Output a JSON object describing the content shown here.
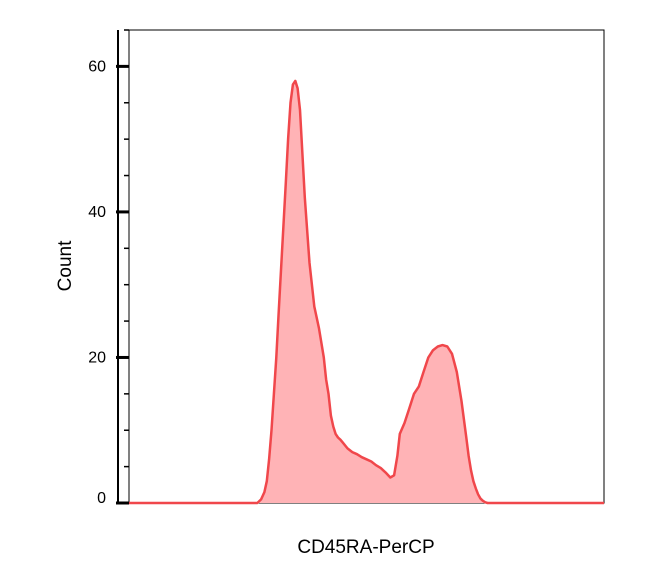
{
  "chart_data": {
    "type": "area",
    "title": "",
    "xlabel": "CD45RA-PerCP",
    "ylabel": "Count",
    "ylim": [
      0,
      65
    ],
    "xlim": [
      0,
      1000
    ],
    "yticks_major": [
      0,
      20,
      40,
      60
    ],
    "yticks_minor": [
      5,
      10,
      15,
      25,
      30,
      35,
      45,
      50,
      55,
      65
    ],
    "grid": false,
    "legend": "none",
    "colors": {
      "line": "#f0474b",
      "fill": "#ffb3b6"
    },
    "series": [
      {
        "x": [
          0,
          270,
          278,
          285,
          290,
          295,
          300,
          305,
          310,
          315,
          320,
          325,
          330,
          335,
          340,
          345,
          350,
          355,
          360,
          365,
          370,
          380,
          390,
          400,
          405,
          410,
          415,
          420,
          425,
          430,
          435,
          440,
          445,
          450,
          460,
          470,
          480,
          490,
          500,
          510,
          520,
          530,
          540,
          550,
          558,
          565,
          570,
          580,
          590,
          600,
          610,
          620,
          630,
          640,
          650,
          660,
          670,
          680,
          690,
          700,
          705,
          710,
          715,
          720,
          725,
          730,
          735,
          740,
          745,
          750,
          755,
          760,
          770,
          780,
          790,
          800,
          900,
          1000
        ],
        "values": [
          0,
          0,
          0.5,
          1.5,
          3,
          6,
          10,
          15,
          20,
          26,
          32,
          38,
          44,
          50,
          55,
          57.5,
          58,
          57,
          54,
          48,
          42,
          33,
          27,
          24,
          22,
          20,
          17,
          15,
          12,
          10.5,
          9.5,
          9,
          8.7,
          8.3,
          7.5,
          7,
          6.7,
          6.3,
          6,
          5.7,
          5.2,
          4.8,
          4.2,
          3.5,
          3.8,
          6.5,
          9.5,
          11,
          13,
          15,
          16,
          18,
          20,
          21,
          21.5,
          21.7,
          21.5,
          20.5,
          18,
          14,
          11.5,
          9,
          6.5,
          4.5,
          3,
          2,
          1.2,
          0.6,
          0.3,
          0.1,
          0,
          0,
          0,
          0,
          0,
          0,
          0,
          0
        ]
      }
    ]
  }
}
